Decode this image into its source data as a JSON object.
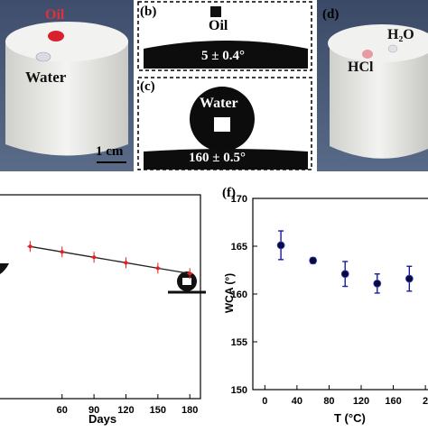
{
  "photo_left": {
    "oil_label": "Oil",
    "water_label": "Water",
    "scale_bar": "1 cm",
    "colors": {
      "oil": "#d8202e",
      "foam": "#eeeeec",
      "background": "#4a5b79"
    }
  },
  "panel_b": {
    "label": "(b)",
    "droplet_label": "Oil",
    "angle": "5 ± 0.4°",
    "angle_value": 5,
    "angle_uncertainty": 0.4
  },
  "panel_c": {
    "label": "(c)",
    "droplet_label": "Water",
    "angle": "160 ± 0.5°",
    "angle_value": 160,
    "angle_uncertainty": 0.5
  },
  "panel_d": {
    "label": "(d)",
    "water_label": "H₂O",
    "acid_label": "HCl"
  },
  "chart_left": {
    "xlabel": "Days",
    "tick_labels": [
      "60",
      "90",
      "120",
      "150",
      "180"
    ]
  },
  "chart_right": {
    "label": "(f)",
    "xlabel": "T (°C)",
    "ylabel": "WCA (°)",
    "x_tick_labels": [
      "0",
      "40",
      "80",
      "120",
      "160",
      "2"
    ],
    "y_tick_labels": [
      "150",
      "155",
      "160",
      "165",
      "170"
    ]
  },
  "chart_data": [
    {
      "type": "line",
      "xlabel": "Days",
      "x": [
        30,
        60,
        90,
        120,
        150,
        180
      ],
      "series": [
        {
          "values": [
            166.2,
            165.8,
            165.4,
            165.0,
            164.6,
            164.2
          ],
          "error": [
            0.4,
            0.4,
            0.4,
            0.4,
            0.4,
            0.4
          ],
          "color": "#e02020"
        }
      ],
      "xlim": [
        0,
        190
      ]
    },
    {
      "type": "scatter",
      "xlabel": "T (°C)",
      "ylabel": "WCA (°)",
      "x": [
        20,
        60,
        100,
        140,
        180
      ],
      "series": [
        {
          "values": [
            165.1,
            163.5,
            162.1,
            161.1,
            161.6
          ],
          "error": [
            1.5,
            0.3,
            1.3,
            1.0,
            1.3
          ],
          "color": "#1a1a9c"
        }
      ],
      "xlim": [
        -15,
        210
      ],
      "ylim": [
        150,
        170
      ]
    }
  ]
}
